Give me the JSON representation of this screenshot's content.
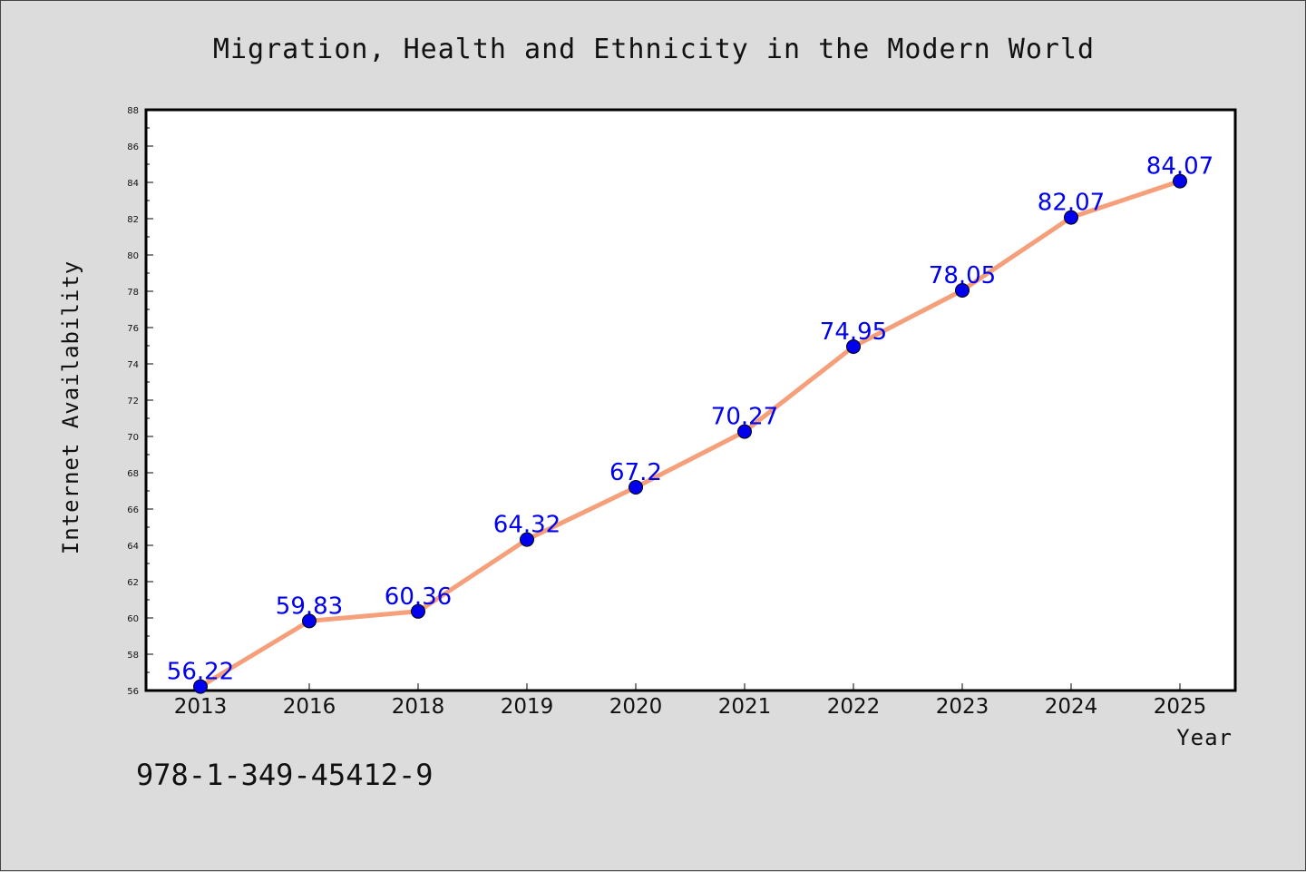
{
  "chart_data": {
    "type": "line",
    "title": "Migration, Health and Ethnicity in the Modern World",
    "xlabel": "Year",
    "ylabel": "Internet Availability",
    "categories": [
      "2013",
      "2016",
      "2018",
      "2019",
      "2020",
      "2021",
      "2022",
      "2023",
      "2024",
      "2025"
    ],
    "series": [
      {
        "values": [
          56.22,
          59.83,
          60.36,
          64.32,
          67.2,
          70.27,
          74.95,
          78.05,
          82.07,
          84.07
        ],
        "labels": [
          "56.22",
          "59.83",
          "60.36",
          "64.32",
          "67.2",
          "70.27",
          "74.95",
          "78.05",
          "82.07",
          "84.07"
        ]
      }
    ],
    "ylim": [
      56,
      88
    ],
    "yticks": [
      "56",
      "58",
      "60",
      "62",
      "64",
      "66",
      "68",
      "70",
      "72",
      "74",
      "76",
      "78",
      "80",
      "82",
      "84",
      "86",
      "88"
    ],
    "grid": false,
    "line_color": "#f5a07a",
    "marker_color": "#0000ee",
    "label_color": "#0000ee",
    "plot_background": "#ffffff",
    "page_background": "#dcdcdc"
  },
  "footnote": "978-1-349-45412-9"
}
